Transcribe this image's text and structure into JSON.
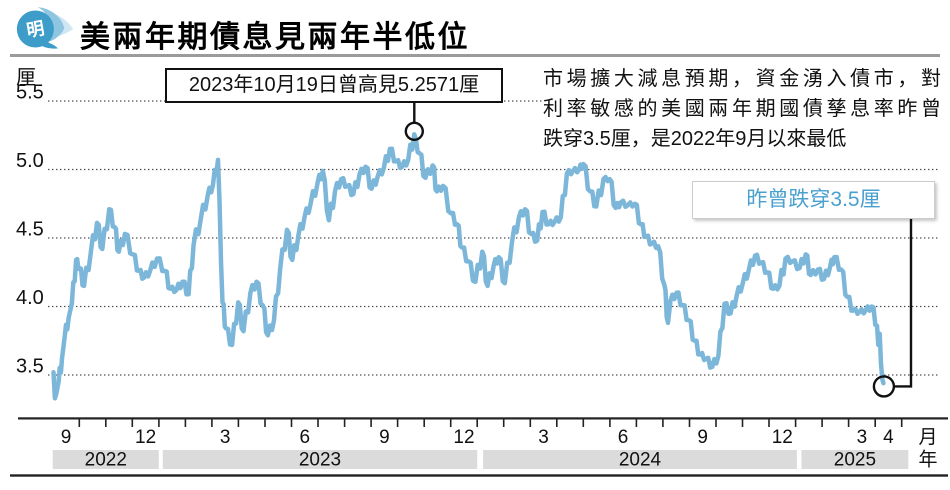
{
  "header": {
    "title": "美兩年期債息見兩年半低位",
    "logo_text": "明"
  },
  "info": {
    "lines": [
      "市場擴大減息預期，資金湧入債市，對",
      "利率敏感的美國兩年期國債孳息率昨曾",
      "跌穿3.5厘，是2022年9月以來最低"
    ]
  },
  "colors": {
    "line": "#7cb7da",
    "logo_main": "#3e9cc9",
    "logo_mid": "#8ec6e2",
    "logo_light": "#cfe7f3",
    "callout_text": "#4aa0cf",
    "year_band": "#dbdbdb"
  },
  "chart_data": {
    "type": "line",
    "title": "美兩年期債息見兩年半低位",
    "ylabel_unit": "厘",
    "xlabel_unit_month": "月",
    "xlabel_unit_year": "年",
    "ylim": [
      3.3,
      5.6
    ],
    "grid": "dotted-horizontal",
    "y_gridlines": [
      5.5,
      5.0,
      4.5,
      4.0,
      3.5
    ],
    "x_month_labels": [
      {
        "m": 1,
        "label": "9"
      },
      {
        "m": 4,
        "label": "12"
      },
      {
        "m": 7,
        "label": "3"
      },
      {
        "m": 10,
        "label": "6"
      },
      {
        "m": 13,
        "label": "9"
      },
      {
        "m": 16,
        "label": "12"
      },
      {
        "m": 19,
        "label": "3"
      },
      {
        "m": 22,
        "label": "6"
      },
      {
        "m": 25,
        "label": "9"
      },
      {
        "m": 28,
        "label": "12"
      },
      {
        "m": 31,
        "label": "3"
      },
      {
        "m": 32,
        "label": "4"
      }
    ],
    "x_tick_start": 1.5,
    "x_tick_end": 32.5,
    "x_tick_interval_months": 1,
    "years": [
      {
        "label": "2022",
        "m0": 0.5,
        "m1": 4.5
      },
      {
        "label": "2023",
        "m0": 4.65,
        "m1": 16.5
      },
      {
        "label": "2024",
        "m0": 16.72,
        "m1": 28.55
      },
      {
        "label": "2025",
        "m0": 28.72,
        "m1": 32.75
      }
    ],
    "series": [
      {
        "name": "美國兩年期國債孳息率",
        "color": "#7cb7da",
        "points_month_value": [
          [
            0.53,
            3.52
          ],
          [
            0.58,
            3.33
          ],
          [
            0.63,
            3.36
          ],
          [
            0.72,
            3.45
          ],
          [
            0.85,
            3.62
          ],
          [
            0.95,
            3.78
          ],
          [
            1.1,
            3.92
          ],
          [
            1.22,
            4.02
          ],
          [
            1.38,
            4.34
          ],
          [
            1.51,
            4.28
          ],
          [
            1.68,
            4.15
          ],
          [
            1.94,
            4.4
          ],
          [
            2.17,
            4.61
          ],
          [
            2.37,
            4.42
          ],
          [
            2.63,
            4.71
          ],
          [
            2.83,
            4.58
          ],
          [
            2.99,
            4.4
          ],
          [
            3.22,
            4.53
          ],
          [
            3.52,
            4.38
          ],
          [
            3.75,
            4.26
          ],
          [
            3.94,
            4.21
          ],
          [
            4.17,
            4.26
          ],
          [
            4.43,
            4.35
          ],
          [
            4.73,
            4.26
          ],
          [
            4.93,
            4.13
          ],
          [
            5.16,
            4.12
          ],
          [
            5.39,
            4.18
          ],
          [
            5.62,
            4.09
          ],
          [
            5.81,
            4.45
          ],
          [
            6.08,
            4.64
          ],
          [
            6.34,
            4.81
          ],
          [
            6.54,
            4.89
          ],
          [
            6.73,
            5.07
          ],
          [
            6.9,
            4.03
          ],
          [
            7.03,
            3.84
          ],
          [
            7.26,
            3.72
          ],
          [
            7.49,
            4.03
          ],
          [
            7.69,
            3.82
          ],
          [
            7.95,
            4.1
          ],
          [
            8.18,
            4.18
          ],
          [
            8.41,
            4.01
          ],
          [
            8.61,
            3.79
          ],
          [
            8.84,
            3.9
          ],
          [
            9.07,
            4.27
          ],
          [
            9.33,
            4.56
          ],
          [
            9.53,
            4.34
          ],
          [
            9.76,
            4.52
          ],
          [
            9.99,
            4.65
          ],
          [
            10.22,
            4.75
          ],
          [
            10.48,
            4.9
          ],
          [
            10.68,
            4.99
          ],
          [
            10.91,
            4.63
          ],
          [
            11.14,
            4.84
          ],
          [
            11.37,
            4.93
          ],
          [
            11.6,
            4.88
          ],
          [
            11.83,
            4.82
          ],
          [
            12.06,
            4.96
          ],
          [
            12.29,
            5.02
          ],
          [
            12.52,
            4.86
          ],
          [
            12.75,
            4.95
          ],
          [
            12.98,
            5.01
          ],
          [
            13.21,
            5.15
          ],
          [
            13.44,
            5.06
          ],
          [
            13.67,
            5.02
          ],
          [
            13.9,
            5.07
          ],
          [
            14.13,
            5.2571
          ],
          [
            14.32,
            5.12
          ],
          [
            14.55,
            4.94
          ],
          [
            14.82,
            5.03
          ],
          [
            14.98,
            4.84
          ],
          [
            15.21,
            4.88
          ],
          [
            15.51,
            4.68
          ],
          [
            15.74,
            4.6
          ],
          [
            15.93,
            4.43
          ],
          [
            16.16,
            4.33
          ],
          [
            16.43,
            4.18
          ],
          [
            16.69,
            4.4
          ],
          [
            16.89,
            4.15
          ],
          [
            17.12,
            4.3
          ],
          [
            17.31,
            4.36
          ],
          [
            17.54,
            4.17
          ],
          [
            17.81,
            4.47
          ],
          [
            18.07,
            4.65
          ],
          [
            18.3,
            4.71
          ],
          [
            18.53,
            4.53
          ],
          [
            18.76,
            4.48
          ],
          [
            18.96,
            4.69
          ],
          [
            19.19,
            4.6
          ],
          [
            19.42,
            4.62
          ],
          [
            19.65,
            4.65
          ],
          [
            19.88,
            4.97
          ],
          [
            20.11,
            4.99
          ],
          [
            20.34,
            5.0
          ],
          [
            20.5,
            5.04
          ],
          [
            20.76,
            4.84
          ],
          [
            20.99,
            4.73
          ],
          [
            21.26,
            4.93
          ],
          [
            21.49,
            4.93
          ],
          [
            21.72,
            4.72
          ],
          [
            21.91,
            4.76
          ],
          [
            22.18,
            4.74
          ],
          [
            22.44,
            4.75
          ],
          [
            22.67,
            4.6
          ],
          [
            22.86,
            4.51
          ],
          [
            23.09,
            4.46
          ],
          [
            23.32,
            4.44
          ],
          [
            23.55,
            4.16
          ],
          [
            23.69,
            3.88
          ],
          [
            23.78,
            4.04
          ],
          [
            24.01,
            4.1
          ],
          [
            24.24,
            4.01
          ],
          [
            24.47,
            3.9
          ],
          [
            24.7,
            3.75
          ],
          [
            24.9,
            3.65
          ],
          [
            25.13,
            3.62
          ],
          [
            25.36,
            3.56
          ],
          [
            25.59,
            3.64
          ],
          [
            25.82,
            4.02
          ],
          [
            26.05,
            3.95
          ],
          [
            26.28,
            4.08
          ],
          [
            26.51,
            4.17
          ],
          [
            26.74,
            4.27
          ],
          [
            26.97,
            4.37
          ],
          [
            27.2,
            4.32
          ],
          [
            27.43,
            4.25
          ],
          [
            27.66,
            4.13
          ],
          [
            27.89,
            4.15
          ],
          [
            28.12,
            4.35
          ],
          [
            28.38,
            4.33
          ],
          [
            28.65,
            4.28
          ],
          [
            28.88,
            4.38
          ],
          [
            29.07,
            4.23
          ],
          [
            29.34,
            4.27
          ],
          [
            29.57,
            4.2
          ],
          [
            29.8,
            4.29
          ],
          [
            29.96,
            4.36
          ],
          [
            30.22,
            4.27
          ],
          [
            30.45,
            4.07
          ],
          [
            30.68,
            3.97
          ],
          [
            30.91,
            3.96
          ],
          [
            31.14,
            3.97
          ],
          [
            31.37,
            4.0
          ],
          [
            31.57,
            3.86
          ],
          [
            31.62,
            3.72
          ],
          [
            31.67,
            3.8
          ],
          [
            31.72,
            3.58
          ],
          [
            31.77,
            3.47
          ],
          [
            31.81,
            3.44
          ]
        ]
      }
    ],
    "annotations": {
      "peak": {
        "label": "2023年10月19日曾高見5.2571厘",
        "m": 14.13,
        "value": 5.2571
      },
      "low": {
        "label": "昨曾跌穿3.5厘",
        "m": 31.81,
        "value": 3.44
      }
    }
  }
}
